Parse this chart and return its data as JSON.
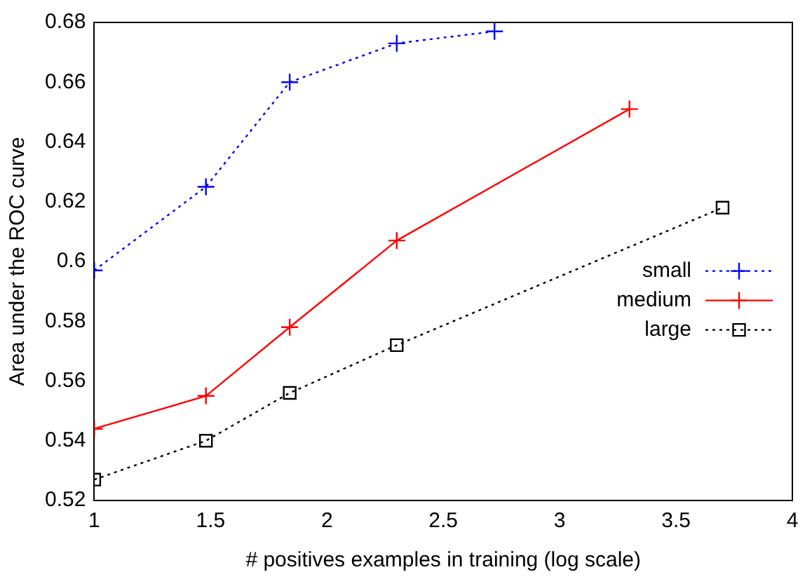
{
  "chart_data": {
    "type": "line",
    "xlabel": "# positives examples in training (log scale)",
    "ylabel": "Area under the ROC curve",
    "xlim": [
      1,
      4
    ],
    "xticks": [
      1,
      1.5,
      2,
      2.5,
      3,
      3.5,
      4
    ],
    "ylim": [
      0.52,
      0.68
    ],
    "yticks": [
      0.52,
      0.54,
      0.56,
      0.58,
      0.6,
      0.62,
      0.64,
      0.66,
      0.68
    ],
    "grid": false,
    "legend": "right",
    "series": [
      {
        "name": "small",
        "color": "#0000ff",
        "marker": "cross",
        "line_style": "dotted",
        "x": [
          1,
          1.48,
          1.84,
          2.3,
          2.72
        ],
        "values": [
          0.597,
          0.625,
          0.66,
          0.673,
          0.677
        ]
      },
      {
        "name": "medium",
        "color": "#ff0000",
        "marker": "cross",
        "line_style": "solid",
        "x": [
          1,
          1.48,
          1.84,
          2.3,
          3.3
        ],
        "values": [
          0.544,
          0.555,
          0.578,
          0.607,
          0.651
        ]
      },
      {
        "name": "large",
        "color": "#000000",
        "marker": "square",
        "line_style": "dotted",
        "x": [
          1,
          1.48,
          1.84,
          2.3,
          3.7
        ],
        "values": [
          0.527,
          0.54,
          0.556,
          0.572,
          0.618
        ]
      }
    ]
  }
}
